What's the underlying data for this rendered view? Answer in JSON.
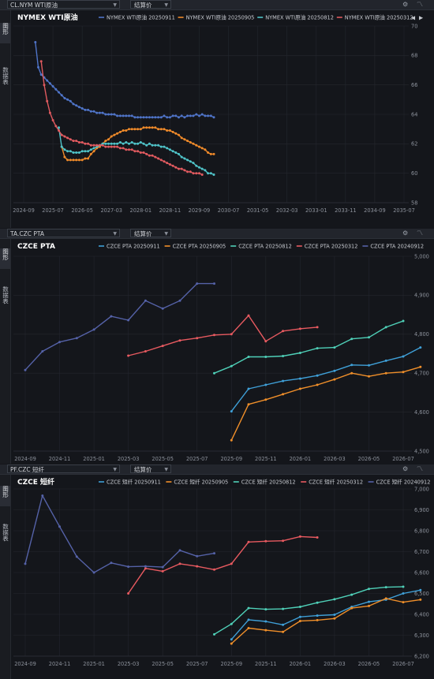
{
  "panels": [
    {
      "symbol": "CL.NYM WTI原油",
      "calc_label": "结算价",
      "sidebar": {
        "item1": "图形",
        "item2": "数据表"
      },
      "chart_data": {
        "type": "line",
        "title": "NYMEX WTI原油",
        "ylim": [
          58,
          70
        ],
        "yticks": [
          "58",
          "60",
          "62",
          "64",
          "66",
          "68",
          "70"
        ],
        "x_ticks": [
          "2024-09",
          "2025-07",
          "2026-05",
          "2027-03",
          "2028-01",
          "2028-11",
          "2029-09",
          "2030-07",
          "2031-05",
          "2032-03",
          "2033-01",
          "2033-11",
          "2034-09",
          "2035-07"
        ],
        "grid": true,
        "legend_position": "top",
        "series": [
          {
            "name": "NYMEX WTI原油 20250911",
            "color": "#4f74c8",
            "start": 2.0,
            "step": 0.5,
            "values": [
              68.9,
              67.2,
              66.7,
              66.5,
              66.3,
              66.1,
              65.9,
              65.7,
              65.5,
              65.3,
              65.1,
              65.0,
              64.9,
              64.7,
              64.6,
              64.5,
              64.4,
              64.3,
              64.3,
              64.2,
              64.2,
              64.1,
              64.1,
              64.1,
              64.0,
              64.0,
              64.0,
              64.0,
              63.9,
              63.9,
              63.9,
              63.9,
              63.9,
              63.9,
              63.8,
              63.8,
              63.8,
              63.8,
              63.8,
              63.8,
              63.8,
              63.8,
              63.8,
              63.8,
              63.9,
              63.8,
              63.8,
              63.9,
              63.9,
              63.8,
              63.9,
              63.8,
              63.9,
              63.9,
              63.9,
              64.0,
              63.9,
              64.0,
              63.9,
              63.9,
              63.9,
              63.8
            ]
          },
          {
            "name": "NYMEX WTI原油 20250905",
            "color": "#ef8a2a",
            "start": 6.5,
            "step": 0.5,
            "values": [
              61.8,
              61.1,
              60.9,
              60.9,
              60.9,
              60.9,
              60.9,
              60.9,
              61.0,
              61.0,
              61.3,
              61.5,
              61.7,
              61.8,
              62.0,
              62.2,
              62.3,
              62.5,
              62.6,
              62.7,
              62.8,
              62.9,
              62.9,
              63.0,
              63.0,
              63.0,
              63.0,
              63.0,
              63.1,
              63.1,
              63.1,
              63.1,
              63.1,
              63.0,
              63.0,
              63.0,
              62.9,
              62.9,
              62.8,
              62.7,
              62.6,
              62.4,
              62.3,
              62.2,
              62.1,
              62.0,
              61.9,
              61.8,
              61.7,
              61.6,
              61.4,
              61.3,
              61.3
            ]
          },
          {
            "name": "NYMEX WTI原油 20250812",
            "color": "#4fc3c8",
            "start": 6.0,
            "step": 0.5,
            "values": [
              63.1,
              61.8,
              61.6,
              61.5,
              61.5,
              61.4,
              61.4,
              61.4,
              61.5,
              61.5,
              61.5,
              61.6,
              61.7,
              61.8,
              61.9,
              62.0,
              62.0,
              62.0,
              62.0,
              62.0,
              62.0,
              62.1,
              62.0,
              62.1,
              62.0,
              62.1,
              62.0,
              62.0,
              62.1,
              62.0,
              61.9,
              62.0,
              61.9,
              61.9,
              61.9,
              61.8,
              61.8,
              61.7,
              61.6,
              61.5,
              61.4,
              61.3,
              61.1,
              61.0,
              60.9,
              60.8,
              60.7,
              60.5,
              60.4,
              60.3,
              60.2,
              60.0,
              60.0,
              59.9
            ]
          },
          {
            "name": "NYMEX WTI原油 20250312",
            "color": "#e05a5f",
            "start": 3.0,
            "step": 0.5,
            "values": [
              67.6,
              66.0,
              64.9,
              64.1,
              63.6,
              63.2,
              62.9,
              62.6,
              62.5,
              62.4,
              62.3,
              62.2,
              62.2,
              62.1,
              62.1,
              62.0,
              62.0,
              61.9,
              61.9,
              61.9,
              61.9,
              61.9,
              61.8,
              61.8,
              61.8,
              61.8,
              61.8,
              61.7,
              61.7,
              61.6,
              61.6,
              61.6,
              61.5,
              61.5,
              61.4,
              61.4,
              61.3,
              61.2,
              61.2,
              61.1,
              61.0,
              60.9,
              60.8,
              60.7,
              60.6,
              60.5,
              60.4,
              60.3,
              60.3,
              60.2,
              60.1,
              60.1,
              60.0,
              60.0,
              60.0,
              59.9
            ]
          }
        ]
      }
    },
    {
      "symbol": "TA.CZC PTA",
      "calc_label": "结算价",
      "sidebar": {
        "item1": "图形",
        "item2": "数据表"
      },
      "chart_data": {
        "type": "line",
        "title": "CZCE PTA",
        "ylim": [
          4500,
          5000
        ],
        "yticks": [
          "4,500",
          "4,600",
          "4,700",
          "4,800",
          "4,900",
          "5,000"
        ],
        "x_ticks": [
          "2024-09",
          "2024-11",
          "2025-01",
          "2025-03",
          "2025-05",
          "2025-07",
          "2025-09",
          "2025-11",
          "2026-01",
          "2026-03",
          "2026-05",
          "2026-07"
        ],
        "grid": true,
        "legend_position": "top",
        "series": [
          {
            "name": "CZCE PTA 20250911",
            "color": "#3fa0d8",
            "start": 12.0,
            "step": 1,
            "values": [
              4602,
              4660,
              4670,
              4680,
              4686,
              4694,
              4706,
              4721,
              4720,
              4732,
              4743,
              4766
            ]
          },
          {
            "name": "CZCE PTA 20250905",
            "color": "#f08f2a",
            "start": 12.0,
            "step": 1,
            "values": [
              4528,
              4620,
              4632,
              4646,
              4660,
              4670,
              4684,
              4700,
              4692,
              4700,
              4703,
              4716
            ]
          },
          {
            "name": "CZCE PTA 20250812",
            "color": "#4fd0b8",
            "start": 11.0,
            "step": 1,
            "values": [
              4700,
              4718,
              4742,
              4742,
              4744,
              4752,
              4764,
              4766,
              4788,
              4792,
              4818,
              4834
            ]
          },
          {
            "name": "CZCE PTA 20250312",
            "color": "#e85a60",
            "start": 6.0,
            "step": 1,
            "values": [
              4745,
              4756,
              4770,
              4784,
              4790,
              4798,
              4800,
              4848,
              4782,
              4808,
              4814,
              4818
            ]
          },
          {
            "name": "CZCE PTA 20240912",
            "color": "#5562a8",
            "start": 0.0,
            "step": 1,
            "values": [
              4708,
              4756,
              4780,
              4790,
              4812,
              4846,
              4836,
              4886,
              4866,
              4886,
              4930,
              4930
            ]
          }
        ]
      }
    },
    {
      "symbol": "PF.CZC 短纤",
      "calc_label": "结算价",
      "sidebar": {
        "item1": "图形",
        "item2": "数据表"
      },
      "chart_data": {
        "type": "line",
        "title": "CZCE 短纤",
        "ylim": [
          6200,
          7000
        ],
        "yticks": [
          "6,200",
          "6,300",
          "6,400",
          "6,500",
          "6,600",
          "6,700",
          "6,800",
          "6,900",
          "7,000"
        ],
        "x_ticks": [
          "2024-09",
          "2024-11",
          "2025-01",
          "2025-03",
          "2025-05",
          "2025-07",
          "2025-09",
          "2025-11",
          "2026-01",
          "2026-03",
          "2026-05",
          "2026-07"
        ],
        "grid": true,
        "legend_position": "top",
        "series": [
          {
            "name": "CZCE 短纤 20250911",
            "color": "#3fa0d8",
            "start": 12.0,
            "step": 1,
            "values": [
              6280,
              6374,
              6366,
              6350,
              6388,
              6394,
              6398,
              6436,
              6460,
              6470,
              6500,
              6516
            ]
          },
          {
            "name": "CZCE 短纤 20250905",
            "color": "#f08f2a",
            "start": 12.0,
            "step": 1,
            "values": [
              6260,
              6334,
              6324,
              6316,
              6368,
              6372,
              6380,
              6430,
              6440,
              6476,
              6458,
              6470
            ]
          },
          {
            "name": "CZCE 短纤 20250812",
            "color": "#4fd0b8",
            "start": 11.0,
            "step": 1,
            "values": [
              6304,
              6354,
              6430,
              6424,
              6426,
              6436,
              6456,
              6472,
              6494,
              6522,
              6530,
              6532
            ]
          },
          {
            "name": "CZCE 短纤 20250312",
            "color": "#e85a60",
            "start": 6.0,
            "step": 1,
            "values": [
              6500,
              6620,
              6606,
              6642,
              6630,
              6614,
              6642,
              6746,
              6750,
              6752,
              6772,
              6768
            ]
          },
          {
            "name": "CZCE 短纤 20240912",
            "color": "#5562a8",
            "start": 0.0,
            "step": 1,
            "values": [
              6642,
              6968,
              6820,
              6676,
              6600,
              6646,
              6628,
              6630,
              6626,
              6706,
              6678,
              6692
            ]
          }
        ]
      }
    }
  ]
}
